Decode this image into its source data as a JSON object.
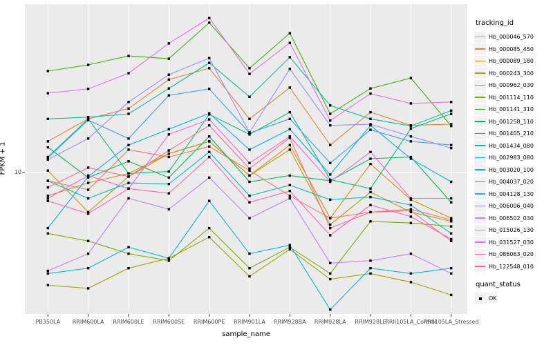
{
  "figure_type": "ggplot-line-chart",
  "chart_data": {
    "type": "line",
    "title": "",
    "xlabel": "sample_name",
    "ylabel": "FPKM + 1",
    "y_scale": "log10",
    "y_ticks": [
      {
        "label": "10",
        "value": 10
      }
    ],
    "ylim_approx": [
      2.3,
      55
    ],
    "grid": true,
    "panel_background": "#EBEBEB",
    "grid_color": "#FFFFFF",
    "tick_label_color": "#4D4D4D",
    "point_marker": "filled-square",
    "point_color": "#000000",
    "legend_position": "right",
    "x_categories": [
      "PB350LA",
      "RRIM600LA",
      "RRIM600LE",
      "RRIM600SE",
      "RRIM600PE",
      "RRIM901LA",
      "RRIM928BA",
      "RRIM928LA",
      "RRIM928LE",
      "RRII105LA_Control",
      "RRII105LA_Stressed"
    ],
    "legend": {
      "tracking_title": "tracking_id",
      "quant_title": "quant_status",
      "quant_items": [
        {
          "label": "OK",
          "marker": "black-square"
        }
      ]
    },
    "series": [
      {
        "name": "Hb_000046_570",
        "color": "#F8766D",
        "values": [
          9.2,
          8.4,
          12.6,
          11.7,
          13.0,
          10.2,
          7.9,
          6.3,
          6.7,
          6.9,
          6.2
        ]
      },
      {
        "name": "Hb_000085_450",
        "color": "#EA8331",
        "values": [
          13.7,
          17.2,
          19.1,
          25.6,
          28.7,
          17.2,
          23.6,
          13.2,
          18.4,
          16.1,
          16.3
        ]
      },
      {
        "name": "Hb_000089_180",
        "color": "#D89000",
        "values": [
          7.9,
          9.0,
          9.9,
          12.1,
          13.7,
          9.7,
          13.2,
          6.3,
          10.9,
          7.6,
          6.3
        ]
      },
      {
        "name": "Hb_000243_300",
        "color": "#C09B00",
        "values": [
          10.2,
          6.7,
          9.6,
          12.1,
          13.7,
          9.7,
          12.6,
          5.9,
          8.2,
          6.7,
          6.1
        ]
      },
      {
        "name": "Hb_000962_030",
        "color": "#A3A500",
        "values": [
          3.2,
          3.1,
          3.8,
          4.2,
          5.2,
          3.5,
          4.6,
          3.4,
          3.6,
          3.3,
          2.9
        ]
      },
      {
        "name": "Hb_001114_110",
        "color": "#7CAE00",
        "values": [
          5.4,
          5.0,
          4.4,
          4.1,
          5.7,
          3.8,
          4.7,
          3.6,
          6.1,
          6.0,
          5.8
        ]
      },
      {
        "name": "Hb_001141_310",
        "color": "#39B600",
        "values": [
          27.9,
          29.7,
          32.5,
          31.6,
          45.5,
          28.7,
          40.9,
          18.1,
          23.4,
          26.0,
          16.0
        ]
      },
      {
        "name": "Hb_001258_110",
        "color": "#00BB4E",
        "values": [
          12.9,
          9.5,
          11.2,
          9.5,
          14.4,
          9.1,
          9.7,
          9.2,
          11.5,
          11.7,
          7.4
        ]
      },
      {
        "name": "Hb_001405_210",
        "color": "#00BF7D",
        "values": [
          11.7,
          17.2,
          9.9,
          10.1,
          18.0,
          14.7,
          18.4,
          9.3,
          8.5,
          15.6,
          18.1
        ]
      },
      {
        "name": "Hb_001434_080",
        "color": "#00C1A3",
        "values": [
          17.2,
          17.5,
          18.1,
          23.4,
          30.3,
          21.5,
          32.1,
          19.7,
          17.2,
          16.0,
          18.7
        ]
      },
      {
        "name": "Hb_002983_080",
        "color": "#00BFC4",
        "values": [
          9.2,
          7.7,
          9.0,
          8.9,
          12.3,
          7.9,
          8.8,
          7.6,
          7.8,
          7.2,
          5.4
        ]
      },
      {
        "name": "Hb_003020_100",
        "color": "#00BAE0",
        "values": [
          3.6,
          3.8,
          4.7,
          4.2,
          7.5,
          4.4,
          4.8,
          2.5,
          3.8,
          3.6,
          3.8
        ]
      },
      {
        "name": "Hb_004037_020",
        "color": "#00B0F6",
        "values": [
          5.7,
          9.6,
          13.2,
          15.5,
          18.2,
          12.6,
          15.5,
          9.8,
          16.1,
          11.5,
          9.1
        ]
      },
      {
        "name": "Hb_004128_130",
        "color": "#35A2FF",
        "values": [
          11.6,
          17.0,
          14.1,
          21.8,
          23.3,
          14.9,
          17.2,
          11.0,
          15.4,
          13.7,
          13.2
        ]
      },
      {
        "name": "Hb_006006_040",
        "color": "#9590FF",
        "values": [
          11.4,
          14.1,
          20.4,
          26.9,
          31.8,
          15.0,
          28.5,
          16.1,
          16.3,
          14.4,
          12.8
        ]
      },
      {
        "name": "Hb_006502_030",
        "color": "#C77CFF",
        "values": [
          3.7,
          4.4,
          7.7,
          6.9,
          9.5,
          6.3,
          7.7,
          4.0,
          4.1,
          4.4,
          3.6
        ]
      },
      {
        "name": "Hb_015026_130",
        "color": "#E76BF3",
        "values": [
          22.3,
          23.3,
          27.3,
          36.9,
          47.7,
          27.1,
          37.1,
          16.9,
          22.2,
          20.1,
          20.4
        ]
      },
      {
        "name": "Hb_031527_030",
        "color": "#FA62DB",
        "values": [
          7.7,
          9.7,
          8.5,
          14.7,
          17.1,
          11.0,
          14.4,
          9.1,
          12.3,
          7.7,
          7.7
        ]
      },
      {
        "name": "Hb_086063_020",
        "color": "#FF62BC",
        "values": [
          7.5,
          6.6,
          8.5,
          8.1,
          11.7,
          7.4,
          8.3,
          5.3,
          7.2,
          6.4,
          5.1
        ]
      },
      {
        "name": "Hb_122548_010",
        "color": "#FF6A98",
        "values": [
          8.6,
          10.5,
          9.6,
          12.5,
          16.1,
          10.4,
          14.2,
          5.7,
          6.7,
          6.8,
          5.0
        ]
      }
    ]
  }
}
